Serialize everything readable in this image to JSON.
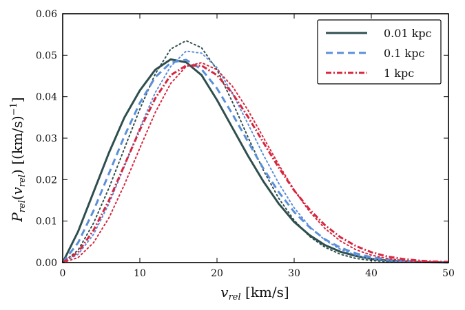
{
  "chart_data": {
    "type": "line",
    "title": "",
    "xlabel": "v_rel [km/s]",
    "ylabel": "P_rel(v_rel) [(km/s)^-1]",
    "xlim": [
      0,
      50
    ],
    "ylim": [
      0,
      0.06
    ],
    "x_ticks": [
      0,
      10,
      20,
      30,
      40,
      50
    ],
    "y_ticks": [
      0.0,
      0.01,
      0.02,
      0.03,
      0.04,
      0.05,
      0.06
    ],
    "x_tick_labels": [
      "0",
      "10",
      "20",
      "30",
      "40",
      "50"
    ],
    "y_tick_labels": [
      "0.00",
      "0.01",
      "0.02",
      "0.03",
      "0.04",
      "0.05",
      "0.06"
    ],
    "grid": false,
    "legend_position": "top-right",
    "x": [
      0,
      2,
      4,
      6,
      8,
      10,
      12,
      14,
      16,
      18,
      20,
      22,
      24,
      26,
      28,
      30,
      32,
      34,
      36,
      38,
      40,
      42,
      44,
      46,
      48,
      50
    ],
    "series": [
      {
        "name": "0.01 kpc",
        "color": "#2f4f4f",
        "dash": "solid",
        "values": [
          0.0,
          0.0075,
          0.017,
          0.0265,
          0.035,
          0.0415,
          0.0465,
          0.049,
          0.0483,
          0.0452,
          0.0392,
          0.0325,
          0.0258,
          0.0196,
          0.0142,
          0.0098,
          0.0066,
          0.0042,
          0.0026,
          0.0016,
          0.0009,
          0.0005,
          0.0003,
          0.00015,
          7e-05,
          3e-05
        ]
      },
      {
        "name": "0.01 kpc (dotted)",
        "color": "#2f4f4f",
        "dash": "dotted",
        "legend": false,
        "values": [
          0.0,
          0.003,
          0.0095,
          0.018,
          0.0275,
          0.037,
          0.0455,
          0.0515,
          0.0535,
          0.0518,
          0.0465,
          0.0387,
          0.0303,
          0.0223,
          0.0155,
          0.0102,
          0.0063,
          0.0037,
          0.002,
          0.001,
          0.0005,
          0.00022,
          0.0001,
          4e-05,
          2e-05,
          1e-05
        ]
      },
      {
        "name": "0.1 kpc",
        "color": "#5b8fd9",
        "dash": "dashed",
        "values": [
          0.0,
          0.0048,
          0.0125,
          0.0215,
          0.0305,
          0.0385,
          0.0447,
          0.0482,
          0.0489,
          0.0466,
          0.042,
          0.0358,
          0.0292,
          0.0227,
          0.017,
          0.0122,
          0.0085,
          0.0056,
          0.0036,
          0.0022,
          0.0013,
          0.0008,
          0.00045,
          0.00025,
          0.00013,
          6e-05
        ]
      },
      {
        "name": "0.1 kpc (dotted)",
        "color": "#5b8fd9",
        "dash": "dotted",
        "legend": false,
        "values": [
          0.0,
          0.002,
          0.0068,
          0.0142,
          0.0232,
          0.0325,
          0.041,
          0.0473,
          0.051,
          0.0505,
          0.047,
          0.0408,
          0.0335,
          0.026,
          0.0191,
          0.0132,
          0.0087,
          0.0054,
          0.0032,
          0.0018,
          0.0009,
          0.00045,
          0.0002,
          9e-05,
          4e-05,
          2e-05
        ]
      },
      {
        "name": "1 kpc",
        "color": "#d7263d",
        "dash": "dashdot",
        "values": [
          0.0,
          0.0025,
          0.0078,
          0.015,
          0.0235,
          0.032,
          0.0396,
          0.0452,
          0.0475,
          0.0475,
          0.0452,
          0.0408,
          0.0352,
          0.029,
          0.0229,
          0.0174,
          0.0128,
          0.009,
          0.0061,
          0.004,
          0.0025,
          0.0015,
          0.0009,
          0.0005,
          0.00027,
          0.00014
        ]
      },
      {
        "name": "1 kpc (dotted)",
        "color": "#d7263d",
        "dash": "dotted",
        "legend": false,
        "values": [
          0.0,
          0.0012,
          0.0048,
          0.0108,
          0.0188,
          0.0276,
          0.0362,
          0.0432,
          0.0473,
          0.0482,
          0.0465,
          0.0425,
          0.0368,
          0.0302,
          0.0236,
          0.0175,
          0.0123,
          0.0082,
          0.0052,
          0.0031,
          0.0018,
          0.001,
          0.0005,
          0.00025,
          0.00012,
          5e-05
        ]
      }
    ],
    "legend_entries": [
      "0.01 kpc",
      "0.1 kpc",
      "1 kpc"
    ]
  }
}
